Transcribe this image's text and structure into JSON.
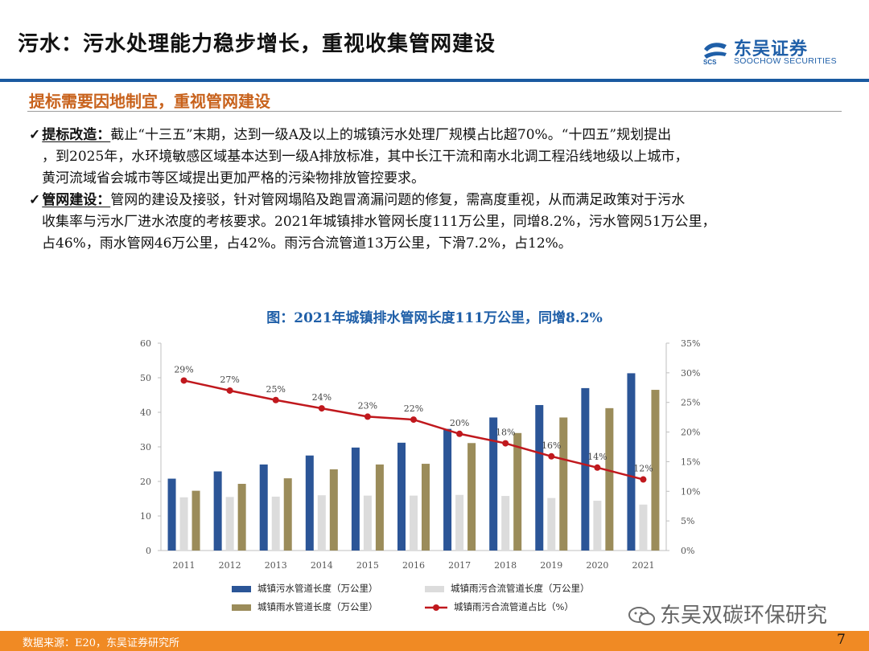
{
  "header": {
    "title": "污水：污水处理能力稳步增长，重视收集管网建设",
    "logo_cn": "东吴证券",
    "logo_en": "SOOCHOW SECURITIES",
    "logo_mark": "SCS",
    "accent": "#1a5aa0"
  },
  "section": {
    "subtitle": "提标需要因地制宜，重视管网建设"
  },
  "bullets": [
    {
      "icon": "check-icon",
      "check": "✓",
      "lead": "提标改造：",
      "line1": "截止“十三五”末期，达到一级A及以上的城镇污水处理厂规模占比超70%。“十四五”规划提出",
      "line2": "，到2025年，水环境敏感区域基本达到一级A排放标准，其中长江干流和南水北调工程沿线地级以上城市，",
      "line3": "黄河流域省会城市等区域提出更加严格的污染物排放管控要求。"
    },
    {
      "icon": "check-icon",
      "check": "✓",
      "lead": "管网建设：",
      "line1": "管网的建设及接驳，针对管网塌陷及跑冒滴漏问题的修复，需高度重视，从而满足政策对于污水",
      "line2": "收集率与污水厂进水浓度的考核要求。2021年城镇排水管网长度111万公里，同增8.2%，污水管网51万公里，",
      "line3": "占46%，雨水管网46万公里，占42%。雨污合流管道13万公里，下滑7.2%，占12%。"
    }
  ],
  "chart_title": "图：2021年城镇排水管网长度111万公里，同增8.2%",
  "chart_data": {
    "type": "bar",
    "categories": [
      "2011",
      "2012",
      "2013",
      "2014",
      "2015",
      "2016",
      "2017",
      "2018",
      "2019",
      "2020",
      "2021"
    ],
    "series": [
      {
        "name": "城镇污水管道长度（万公里）",
        "kind": "bar",
        "axis": "left",
        "color": "#2b5597",
        "values": [
          20.8,
          22.9,
          24.9,
          27.5,
          29.8,
          31.2,
          35.2,
          38.5,
          42.1,
          47.0,
          51.3
        ]
      },
      {
        "name": "城镇雨污合流管道长度（万公里）",
        "kind": "bar",
        "axis": "left",
        "color": "#dcdcdc",
        "values": [
          15.4,
          15.5,
          15.6,
          16.0,
          15.9,
          15.9,
          16.1,
          15.8,
          15.2,
          14.4,
          13.3
        ]
      },
      {
        "name": "城镇雨水管道长度（万公里）",
        "kind": "bar",
        "axis": "left",
        "color": "#9b8c5a",
        "values": [
          17.3,
          19.3,
          20.9,
          23.5,
          24.9,
          25.1,
          31.1,
          34.0,
          38.5,
          41.2,
          46.5
        ]
      },
      {
        "name": "城镇雨污合流管道占比（%）",
        "kind": "line",
        "axis": "right",
        "color": "#c0181d",
        "values": [
          28.7,
          27.0,
          25.4,
          24.0,
          22.6,
          22.1,
          19.7,
          18.1,
          15.9,
          14.0,
          12.0
        ],
        "labels": [
          "29%",
          "27%",
          "25%",
          "24%",
          "23%",
          "22%",
          "20%",
          "18%",
          "16%",
          "14%",
          "12%"
        ]
      }
    ],
    "y_left": {
      "min": 0,
      "max": 60,
      "ticks": [
        "0",
        "10",
        "20",
        "30",
        "40",
        "50",
        "60"
      ]
    },
    "y_right": {
      "min": 0,
      "max": 35,
      "ticks": [
        "0%",
        "5%",
        "10%",
        "15%",
        "20%",
        "25%",
        "30%",
        "35%"
      ]
    },
    "grid": false,
    "legend_position": "bottom"
  },
  "footer": {
    "source": "数据来源：E20，东吴证券研究所",
    "page": "7",
    "bar_color": "#f08a24"
  },
  "watermark": {
    "text": "东吴双碳环保研究"
  }
}
